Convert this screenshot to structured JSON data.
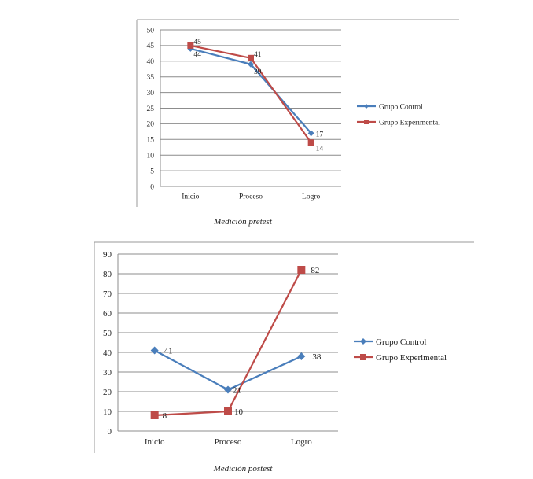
{
  "chart_data": [
    {
      "type": "line",
      "categories": [
        "Inicio",
        "Proceso",
        "Logro"
      ],
      "ylim": [
        0,
        50
      ],
      "yticks": [
        0,
        5,
        10,
        15,
        20,
        25,
        30,
        35,
        40,
        45,
        50
      ],
      "grid": true,
      "legend_position": "right",
      "series": [
        {
          "name": "Grupo Control",
          "values": [
            44,
            39,
            17
          ],
          "color": "#4a7ebb",
          "marker": "diamond"
        },
        {
          "name": "Grupo Experimental",
          "values": [
            45,
            41,
            14
          ],
          "color": "#be4b48",
          "marker": "square"
        }
      ]
    },
    {
      "type": "line",
      "categories": [
        "Inicio",
        "Proceso",
        "Logro"
      ],
      "ylim": [
        0,
        90
      ],
      "yticks": [
        0,
        10,
        20,
        30,
        40,
        50,
        60,
        70,
        80,
        90
      ],
      "grid": true,
      "legend_position": "right",
      "series": [
        {
          "name": "Grupo Control",
          "values": [
            41,
            21,
            38
          ],
          "color": "#4a7ebb",
          "marker": "diamond"
        },
        {
          "name": "Grupo Experimental",
          "values": [
            8,
            10,
            82
          ],
          "color": "#be4b48",
          "marker": "square"
        }
      ]
    }
  ],
  "captions": {
    "pretest": "Medición pretest",
    "postest": "Medición postest"
  }
}
